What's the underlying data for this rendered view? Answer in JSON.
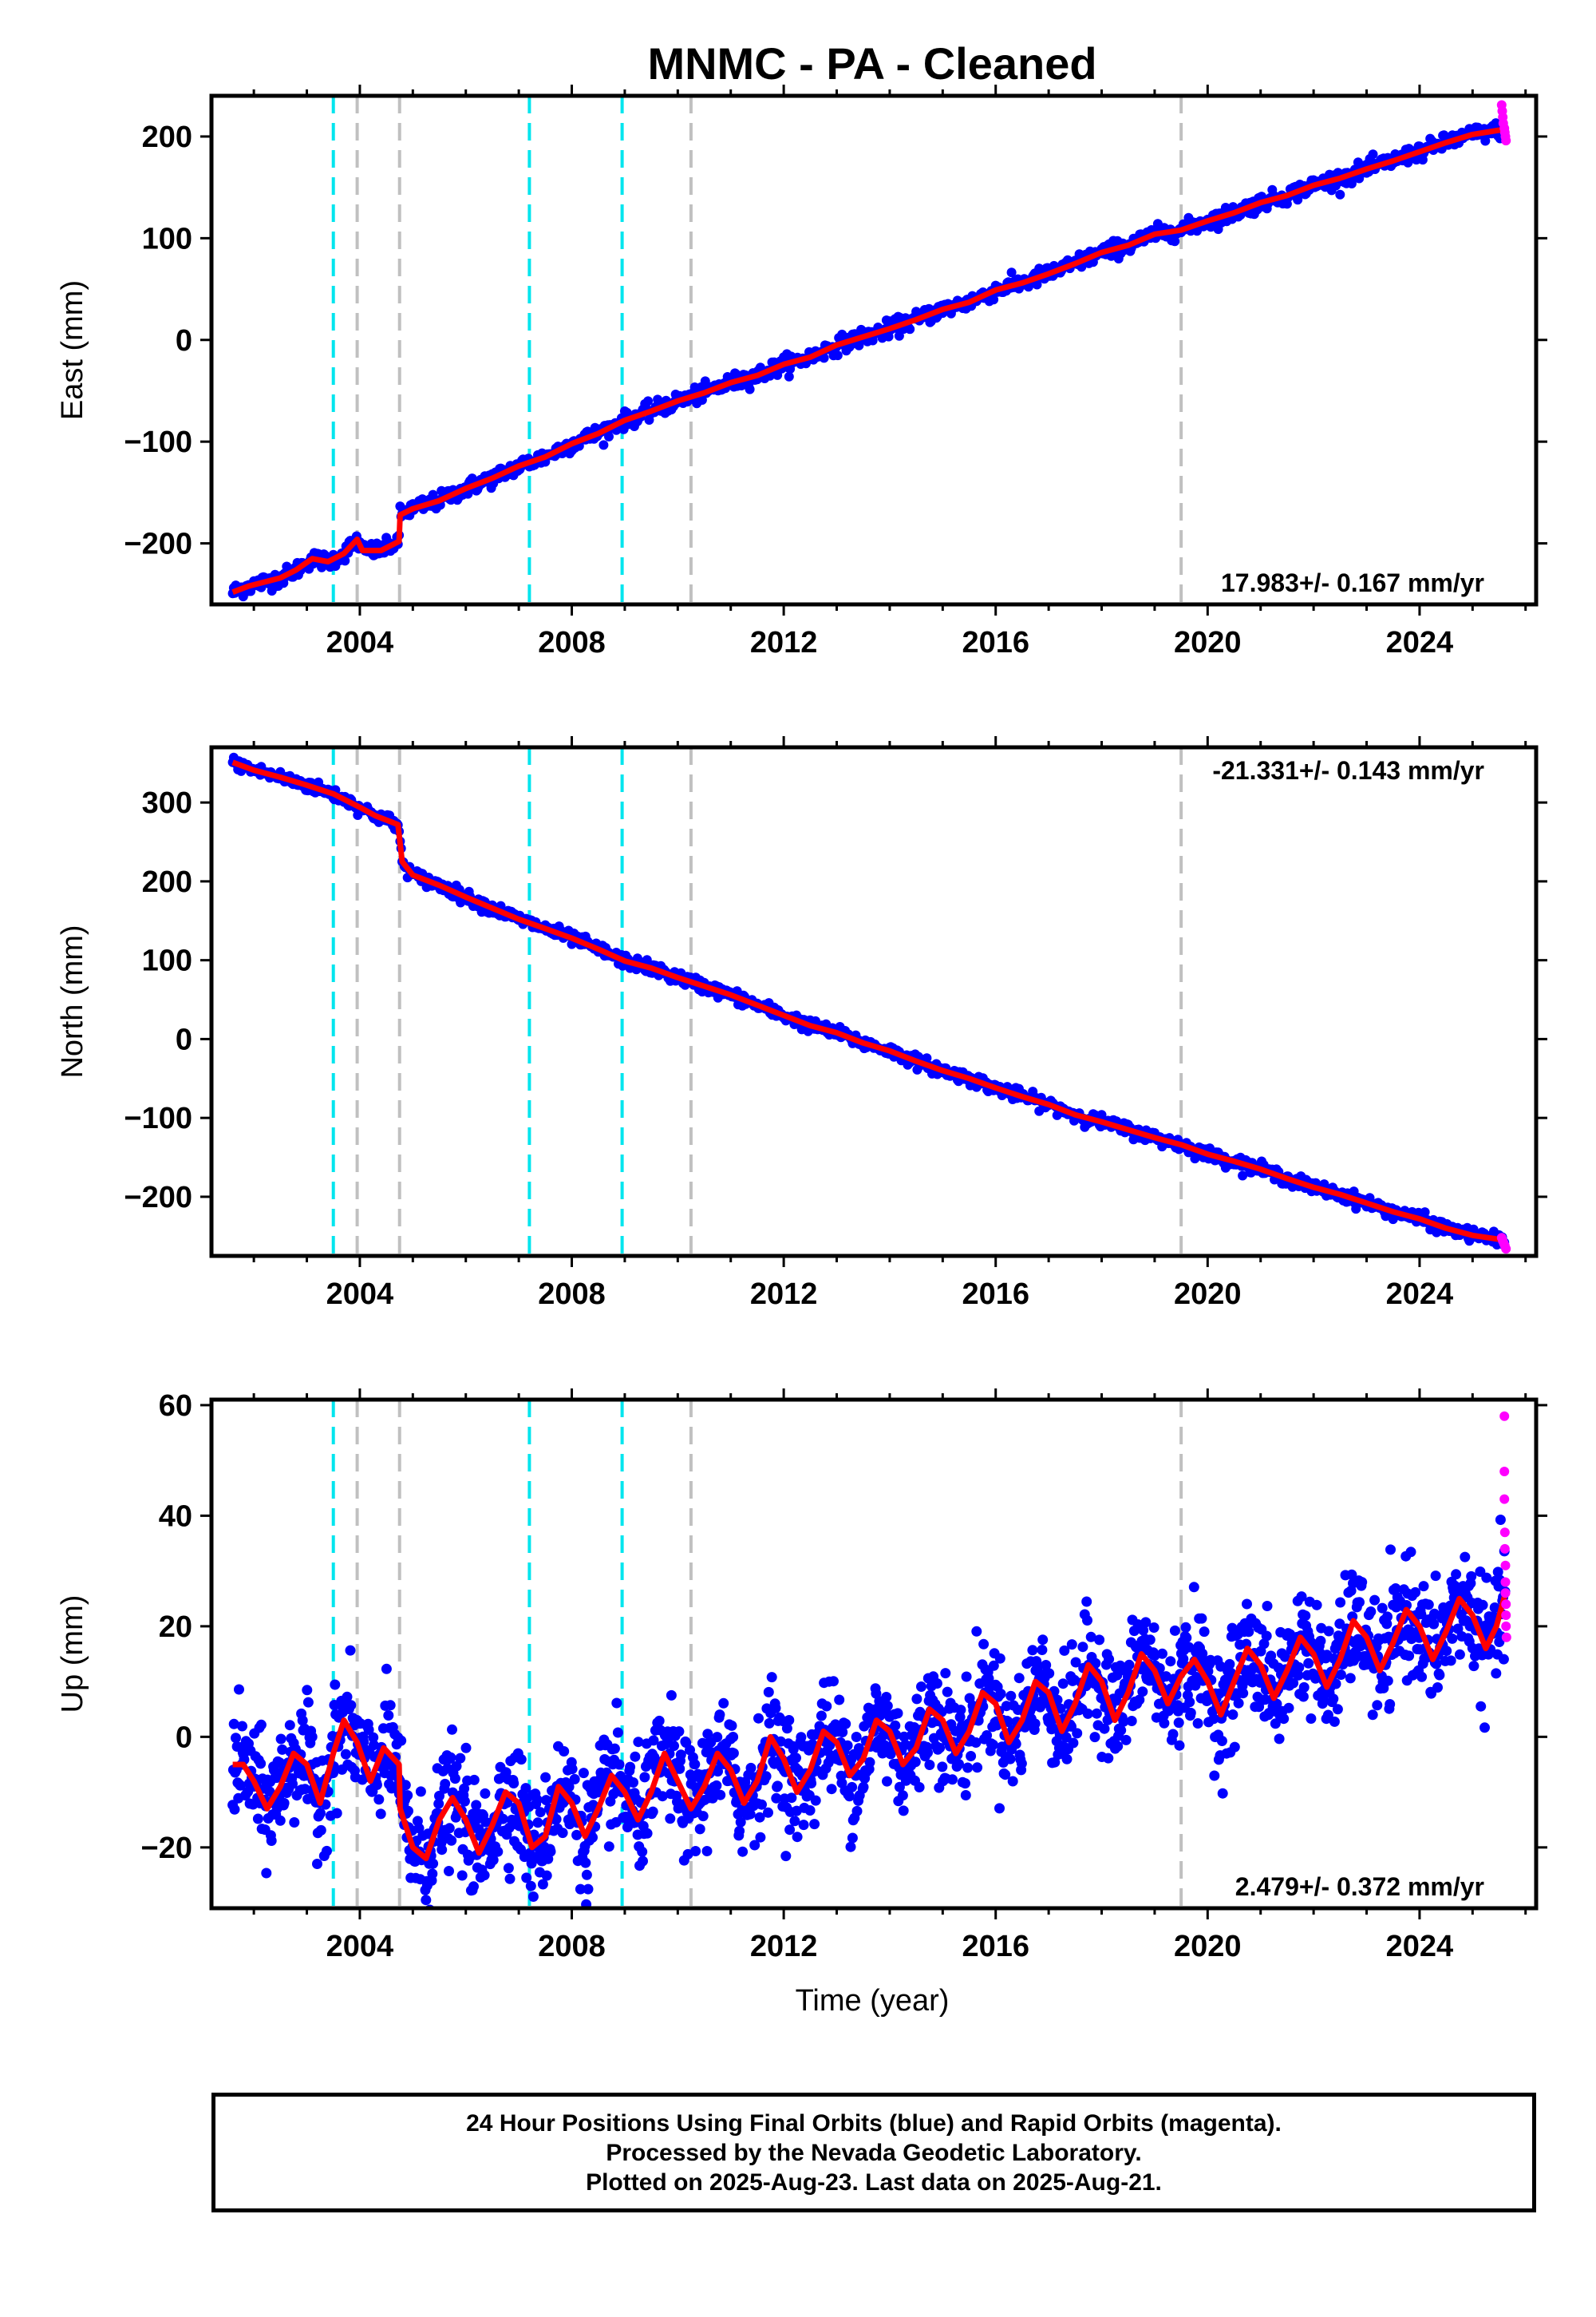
{
  "title": "MNMC  - PA - Cleaned",
  "xlabel": "Time (year)",
  "footer": {
    "line1": "24 Hour Positions Using Final Orbits (blue) and Rapid Orbits (magenta).",
    "line2": "Processed by the Nevada Geodetic Laboratory.",
    "line3": "Plotted on 2025-Aug-23. Last data on 2025-Aug-21."
  },
  "colors": {
    "final_orbits": "#0000ff",
    "rapid_orbits": "#ff00ff",
    "model": "#ff0000",
    "equipment_change": "#c0c0c0",
    "earthquake": "#00e5ee"
  },
  "chart_data": [
    {
      "type": "scatter",
      "panel": "east",
      "ylabel": "East (mm)",
      "xlim": [
        2001.2,
        2026.2
      ],
      "ylim": [
        -260,
        240
      ],
      "xticks": [
        2004,
        2008,
        2012,
        2016,
        2020,
        2024
      ],
      "yticks": [
        -200,
        -100,
        0,
        100,
        200
      ],
      "rate_text": "17.983+/- 0.167 mm/yr",
      "rate_position": "bottom-right",
      "vlines_cyan": [
        2003.5,
        2007.2,
        2008.95
      ],
      "vlines_gray": [
        2003.95,
        2004.75,
        2010.25,
        2019.5
      ],
      "model_points": [
        [
          2001.6,
          -248
        ],
        [
          2001.9,
          -242
        ],
        [
          2002.2,
          -238
        ],
        [
          2002.5,
          -234
        ],
        [
          2002.8,
          -226
        ],
        [
          2003.1,
          -215
        ],
        [
          2003.4,
          -218
        ],
        [
          2003.7,
          -210
        ],
        [
          2003.95,
          -196
        ],
        [
          2004.05,
          -207
        ],
        [
          2004.4,
          -207
        ],
        [
          2004.74,
          -198
        ],
        [
          2004.76,
          -172
        ],
        [
          2005.0,
          -166
        ],
        [
          2005.5,
          -158
        ],
        [
          2006.0,
          -146
        ],
        [
          2006.5,
          -136
        ],
        [
          2007.0,
          -124
        ],
        [
          2007.5,
          -115
        ],
        [
          2008.0,
          -102
        ],
        [
          2008.5,
          -92
        ],
        [
          2009.0,
          -79
        ],
        [
          2009.5,
          -70
        ],
        [
          2010.0,
          -60
        ],
        [
          2010.5,
          -52
        ],
        [
          2011.0,
          -42
        ],
        [
          2011.5,
          -35
        ],
        [
          2012.0,
          -24
        ],
        [
          2012.5,
          -17
        ],
        [
          2013.0,
          -5
        ],
        [
          2013.5,
          3
        ],
        [
          2014.0,
          11
        ],
        [
          2014.5,
          20
        ],
        [
          2015.0,
          30
        ],
        [
          2015.5,
          37
        ],
        [
          2016.0,
          49
        ],
        [
          2016.5,
          56
        ],
        [
          2017.0,
          65
        ],
        [
          2017.5,
          75
        ],
        [
          2018.0,
          86
        ],
        [
          2018.5,
          93
        ],
        [
          2019.0,
          104
        ],
        [
          2019.5,
          108
        ],
        [
          2020.0,
          117
        ],
        [
          2020.5,
          125
        ],
        [
          2021.0,
          135
        ],
        [
          2021.5,
          142
        ],
        [
          2022.0,
          152
        ],
        [
          2022.5,
          159
        ],
        [
          2023.0,
          168
        ],
        [
          2023.5,
          176
        ],
        [
          2024.0,
          185
        ],
        [
          2024.5,
          194
        ],
        [
          2025.0,
          202
        ],
        [
          2025.6,
          207
        ]
      ],
      "noise_mm": 4,
      "rapid_points": [
        [
          2025.55,
          231
        ],
        [
          2025.56,
          225
        ],
        [
          2025.57,
          219
        ],
        [
          2025.58,
          213
        ],
        [
          2025.6,
          208
        ],
        [
          2025.61,
          204
        ],
        [
          2025.62,
          200
        ],
        [
          2025.63,
          196
        ]
      ]
    },
    {
      "type": "scatter",
      "panel": "north",
      "ylabel": "North (mm)",
      "xlim": [
        2001.2,
        2026.2
      ],
      "ylim": [
        -275,
        370
      ],
      "xticks": [
        2004,
        2008,
        2012,
        2016,
        2020,
        2024
      ],
      "yticks": [
        -200,
        -100,
        0,
        100,
        200,
        300
      ],
      "rate_text": "-21.331+/- 0.143 mm/yr",
      "rate_position": "top-right",
      "vlines_cyan": [
        2003.5,
        2007.2,
        2008.95
      ],
      "vlines_gray": [
        2003.95,
        2004.75,
        2010.25,
        2019.5
      ],
      "model_points": [
        [
          2001.6,
          351
        ],
        [
          2002.0,
          341
        ],
        [
          2002.5,
          332
        ],
        [
          2003.0,
          322
        ],
        [
          2003.5,
          311
        ],
        [
          2004.0,
          294
        ],
        [
          2004.3,
          283
        ],
        [
          2004.72,
          272
        ],
        [
          2004.8,
          225
        ],
        [
          2005.0,
          208
        ],
        [
          2005.5,
          195
        ],
        [
          2006.0,
          180
        ],
        [
          2006.5,
          166
        ],
        [
          2007.0,
          152
        ],
        [
          2007.5,
          140
        ],
        [
          2008.0,
          128
        ],
        [
          2008.5,
          114
        ],
        [
          2009.0,
          99
        ],
        [
          2009.5,
          90
        ],
        [
          2010.0,
          78
        ],
        [
          2010.5,
          67
        ],
        [
          2011.0,
          56
        ],
        [
          2011.5,
          43
        ],
        [
          2012.0,
          30
        ],
        [
          2012.5,
          17
        ],
        [
          2013.0,
          8
        ],
        [
          2013.5,
          -5
        ],
        [
          2014.0,
          -15
        ],
        [
          2014.5,
          -28
        ],
        [
          2015.0,
          -40
        ],
        [
          2015.5,
          -50
        ],
        [
          2016.0,
          -62
        ],
        [
          2016.5,
          -73
        ],
        [
          2017.0,
          -83
        ],
        [
          2017.5,
          -96
        ],
        [
          2018.0,
          -105
        ],
        [
          2018.5,
          -115
        ],
        [
          2019.0,
          -125
        ],
        [
          2019.5,
          -134
        ],
        [
          2020.0,
          -146
        ],
        [
          2020.5,
          -155
        ],
        [
          2021.0,
          -165
        ],
        [
          2021.5,
          -177
        ],
        [
          2022.0,
          -188
        ],
        [
          2022.5,
          -197
        ],
        [
          2023.0,
          -208
        ],
        [
          2023.5,
          -219
        ],
        [
          2024.0,
          -228
        ],
        [
          2024.5,
          -240
        ],
        [
          2025.0,
          -249
        ],
        [
          2025.6,
          -255
        ]
      ],
      "noise_mm": 4,
      "rapid_points": [
        [
          2025.55,
          -252
        ],
        [
          2025.57,
          -256
        ],
        [
          2025.59,
          -259
        ],
        [
          2025.61,
          -262
        ],
        [
          2025.63,
          -266
        ]
      ]
    },
    {
      "type": "scatter",
      "panel": "up",
      "ylabel": "Up (mm)",
      "xlim": [
        2001.2,
        2026.2
      ],
      "ylim": [
        -31,
        61
      ],
      "xticks": [
        2004,
        2008,
        2012,
        2016,
        2020,
        2024
      ],
      "yticks": [
        -20,
        0,
        20,
        40,
        60
      ],
      "rate_text": "2.479+/- 0.372 mm/yr",
      "rate_position": "bottom-right",
      "vlines_cyan": [
        2003.5,
        2007.2,
        2008.95
      ],
      "vlines_gray": [
        2003.95,
        2004.75,
        2010.25,
        2019.5
      ],
      "model_points": [
        [
          2001.6,
          -5
        ],
        [
          2001.8,
          -5
        ],
        [
          2002.0,
          -8
        ],
        [
          2002.25,
          -13
        ],
        [
          2002.5,
          -9
        ],
        [
          2002.75,
          -3
        ],
        [
          2003.0,
          -5
        ],
        [
          2003.25,
          -12
        ],
        [
          2003.5,
          -3
        ],
        [
          2003.7,
          3
        ],
        [
          2003.95,
          -1
        ],
        [
          2004.2,
          -8
        ],
        [
          2004.45,
          -2
        ],
        [
          2004.74,
          -5
        ],
        [
          2004.76,
          -13
        ],
        [
          2005.0,
          -20
        ],
        [
          2005.25,
          -22
        ],
        [
          2005.5,
          -15
        ],
        [
          2005.75,
          -11
        ],
        [
          2006.0,
          -15
        ],
        [
          2006.25,
          -21
        ],
        [
          2006.5,
          -16
        ],
        [
          2006.75,
          -10
        ],
        [
          2007.0,
          -12
        ],
        [
          2007.25,
          -20
        ],
        [
          2007.5,
          -18
        ],
        [
          2007.75,
          -9
        ],
        [
          2008.0,
          -12
        ],
        [
          2008.25,
          -18
        ],
        [
          2008.5,
          -13
        ],
        [
          2008.75,
          -7
        ],
        [
          2009.0,
          -10
        ],
        [
          2009.25,
          -15
        ],
        [
          2009.5,
          -10
        ],
        [
          2009.75,
          -3
        ],
        [
          2010.0,
          -8
        ],
        [
          2010.25,
          -13
        ],
        [
          2010.5,
          -9
        ],
        [
          2010.75,
          -3
        ],
        [
          2011.0,
          -6
        ],
        [
          2011.25,
          -12
        ],
        [
          2011.5,
          -8
        ],
        [
          2011.75,
          0
        ],
        [
          2012.0,
          -4
        ],
        [
          2012.25,
          -10
        ],
        [
          2012.5,
          -6
        ],
        [
          2012.75,
          1
        ],
        [
          2013.0,
          -1
        ],
        [
          2013.25,
          -7
        ],
        [
          2013.5,
          -4
        ],
        [
          2013.75,
          3
        ],
        [
          2014.0,
          1
        ],
        [
          2014.25,
          -5
        ],
        [
          2014.5,
          -2
        ],
        [
          2014.75,
          5
        ],
        [
          2015.0,
          3
        ],
        [
          2015.25,
          -3
        ],
        [
          2015.5,
          1
        ],
        [
          2015.75,
          8
        ],
        [
          2016.0,
          6
        ],
        [
          2016.25,
          -1
        ],
        [
          2016.5,
          3
        ],
        [
          2016.75,
          10
        ],
        [
          2017.0,
          8
        ],
        [
          2017.25,
          1
        ],
        [
          2017.5,
          6
        ],
        [
          2017.75,
          13
        ],
        [
          2018.0,
          10
        ],
        [
          2018.25,
          3
        ],
        [
          2018.5,
          8
        ],
        [
          2018.75,
          15
        ],
        [
          2019.0,
          12
        ],
        [
          2019.25,
          6
        ],
        [
          2019.5,
          11
        ],
        [
          2019.75,
          14
        ],
        [
          2020.0,
          10
        ],
        [
          2020.25,
          4
        ],
        [
          2020.5,
          10
        ],
        [
          2020.75,
          16
        ],
        [
          2021.0,
          13
        ],
        [
          2021.25,
          7
        ],
        [
          2021.5,
          12
        ],
        [
          2021.75,
          18
        ],
        [
          2022.0,
          15
        ],
        [
          2022.25,
          9
        ],
        [
          2022.5,
          14
        ],
        [
          2022.75,
          21
        ],
        [
          2023.0,
          18
        ],
        [
          2023.25,
          12
        ],
        [
          2023.5,
          17
        ],
        [
          2023.75,
          23
        ],
        [
          2024.0,
          20
        ],
        [
          2024.25,
          14
        ],
        [
          2024.5,
          19
        ],
        [
          2024.75,
          25
        ],
        [
          2025.0,
          22
        ],
        [
          2025.25,
          16
        ],
        [
          2025.45,
          20
        ],
        [
          2025.62,
          26
        ]
      ],
      "noise_mm": 5,
      "rapid_points": [
        [
          2025.6,
          58
        ],
        [
          2025.6,
          48
        ],
        [
          2025.6,
          43
        ],
        [
          2025.61,
          37
        ],
        [
          2025.61,
          34
        ],
        [
          2025.62,
          31
        ],
        [
          2025.62,
          28
        ],
        [
          2025.62,
          26
        ],
        [
          2025.63,
          24
        ],
        [
          2025.63,
          22
        ],
        [
          2025.63,
          20
        ],
        [
          2025.64,
          18
        ]
      ]
    }
  ]
}
